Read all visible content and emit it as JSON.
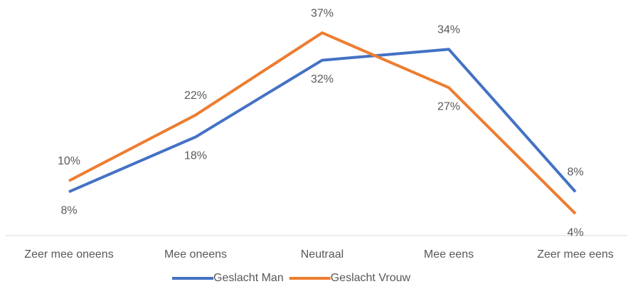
{
  "chart_data": {
    "type": "line",
    "categories": [
      "Zeer mee oneens",
      "Mee oneens",
      "Neutraal",
      "Mee eens",
      "Zeer mee eens"
    ],
    "series": [
      {
        "name": "Geslacht Man",
        "color": "#4472c4",
        "values": [
          8,
          18,
          32,
          34,
          8
        ],
        "value_labels": [
          "8%",
          "18%",
          "32%",
          "34%",
          "8%"
        ]
      },
      {
        "name": "Geslacht Vrouw",
        "color": "#ed7d31",
        "values": [
          10,
          22,
          37,
          27,
          4
        ],
        "value_labels": [
          "10%",
          "22%",
          "37%",
          "27%",
          "4%"
        ]
      }
    ],
    "ylim": [
      0,
      40
    ],
    "legend": "bottom"
  }
}
